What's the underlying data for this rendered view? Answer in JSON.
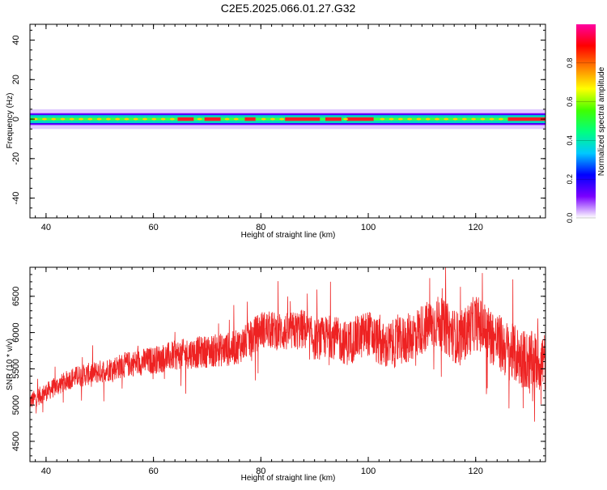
{
  "title": "C2E5.2025.066.01.27.G32",
  "colors": {
    "axis": "#000000",
    "snr_line": "#ee2222",
    "background": "#ffffff"
  },
  "chart_data": [
    {
      "type": "heatmap",
      "xlabel": "Height of straight line (km)",
      "ylabel": "Frequency (Hz)",
      "xlim": [
        37,
        133
      ],
      "ylim": [
        -50,
        48
      ],
      "xticks": [
        40,
        60,
        80,
        100,
        120
      ],
      "yticks": [
        40,
        20,
        0,
        -20,
        -40
      ],
      "grid": false,
      "band": {
        "center_hz": 0,
        "core_halfwidth_hz": 2,
        "halo_halfwidth_hz": 5
      },
      "peak_segments_km": [
        [
          64.5,
          67.5
        ],
        [
          69.5,
          72.5
        ],
        [
          77,
          79
        ],
        [
          84.5,
          91
        ],
        [
          92,
          95
        ],
        [
          96,
          101
        ],
        [
          126,
          133
        ]
      ],
      "colorbar": {
        "label": "Normalized spectral amplitude",
        "range": [
          0,
          1
        ],
        "ticks": [
          "0.0",
          "0.2",
          "0.4",
          "0.6",
          "0.8"
        ],
        "colors": [
          "#ffffff",
          "#7a00ff",
          "#0000ff",
          "#00c8ff",
          "#00ff80",
          "#40ff00",
          "#ffff00",
          "#ff8000",
          "#ff0000",
          "#ff00a0"
        ]
      }
    },
    {
      "type": "line",
      "xlabel": "Height of straight line (km)",
      "ylabel": "SNR (10 * v/v)",
      "xlim": [
        37,
        133
      ],
      "ylim": [
        4220,
        6900
      ],
      "xticks": [
        40,
        60,
        80,
        100,
        120
      ],
      "yticks": [
        4500,
        5000,
        5500,
        6000,
        6500
      ],
      "grid": false,
      "series": [
        {
          "x": [
            37,
            40,
            45,
            50,
            55,
            60,
            65,
            70,
            75,
            78,
            80,
            85,
            88,
            90,
            93,
            96,
            100,
            103,
            107,
            110,
            113,
            117,
            120,
            123,
            126,
            130,
            133
          ],
          "values": [
            5050,
            5180,
            5380,
            5460,
            5560,
            5620,
            5700,
            5740,
            5780,
            5900,
            6050,
            6000,
            6050,
            5900,
            5950,
            5850,
            6000,
            5800,
            5900,
            6050,
            6150,
            5900,
            6150,
            5950,
            5750,
            5600,
            5600
          ]
        }
      ]
    }
  ]
}
